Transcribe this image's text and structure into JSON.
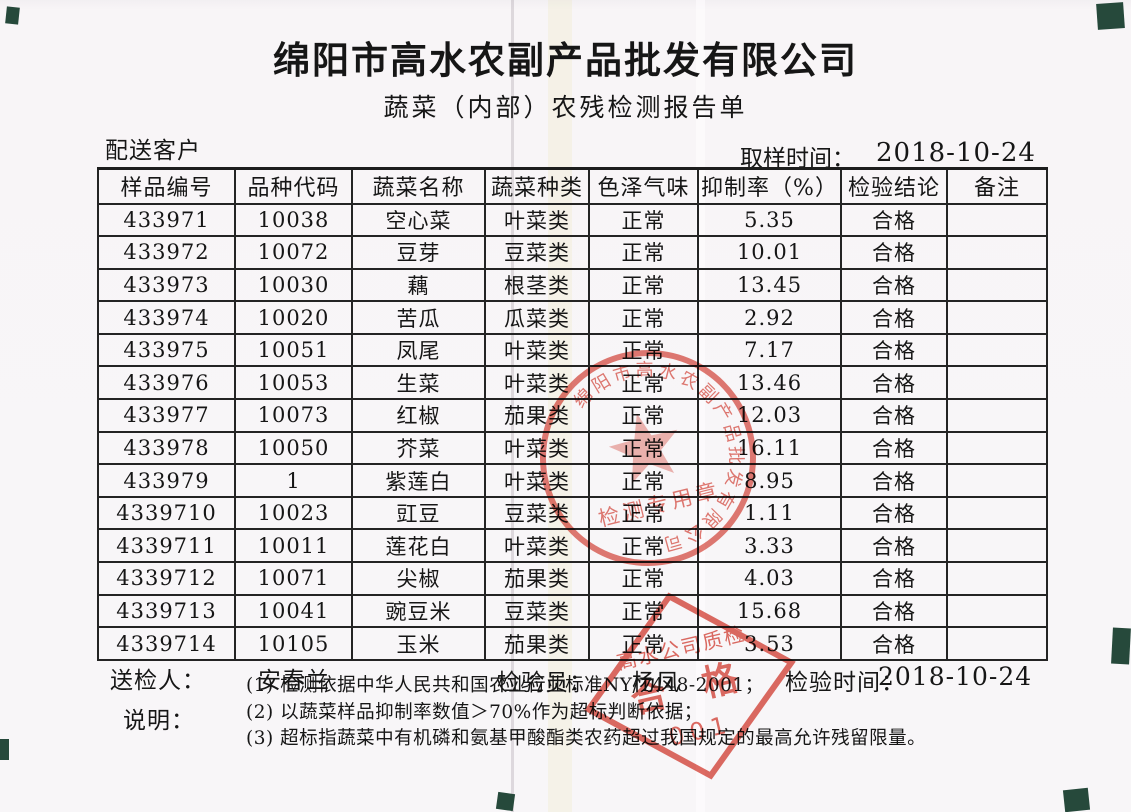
{
  "page": {
    "company_title": "绵阳市高水农副产品批发有限公司",
    "report_title": "蔬菜（内部）农残检测报告单",
    "delivery_customer_label": "配送客户",
    "sampling_time_label": "取样时间：",
    "sampling_time_value": "2018-10-24"
  },
  "table": {
    "headers": [
      "样品编号",
      "品种代码",
      "蔬菜名称",
      "蔬菜种类",
      "色泽气味",
      "抑制率（%）",
      "检验结论",
      "备注"
    ],
    "rows": [
      [
        "433971",
        "10038",
        "空心菜",
        "叶菜类",
        "正常",
        "5.35",
        "合格",
        ""
      ],
      [
        "433972",
        "10072",
        "豆芽",
        "豆菜类",
        "正常",
        "10.01",
        "合格",
        ""
      ],
      [
        "433973",
        "10030",
        "藕",
        "根茎类",
        "正常",
        "13.45",
        "合格",
        ""
      ],
      [
        "433974",
        "10020",
        "苦瓜",
        "瓜菜类",
        "正常",
        "2.92",
        "合格",
        ""
      ],
      [
        "433975",
        "10051",
        "凤尾",
        "叶菜类",
        "正常",
        "7.17",
        "合格",
        ""
      ],
      [
        "433976",
        "10053",
        "生菜",
        "叶菜类",
        "正常",
        "13.46",
        "合格",
        ""
      ],
      [
        "433977",
        "10073",
        "红椒",
        "茄果类",
        "正常",
        "12.03",
        "合格",
        ""
      ],
      [
        "433978",
        "10050",
        "芥菜",
        "叶菜类",
        "正常",
        "16.11",
        "合格",
        ""
      ],
      [
        "433979",
        "1",
        "紫莲白",
        "叶菜类",
        "正常",
        "8.95",
        "合格",
        ""
      ],
      [
        "4339710",
        "10023",
        "豇豆",
        "豆菜类",
        "正常",
        "1.11",
        "合格",
        ""
      ],
      [
        "4339711",
        "10011",
        "莲花白",
        "叶菜类",
        "正常",
        "3.33",
        "合格",
        ""
      ],
      [
        "4339712",
        "10071",
        "尖椒",
        "茄果类",
        "正常",
        "4.03",
        "合格",
        ""
      ],
      [
        "4339713",
        "10041",
        "豌豆米",
        "豆菜类",
        "正常",
        "15.68",
        "合格",
        ""
      ],
      [
        "4339714",
        "10105",
        "玉米",
        "茄果类",
        "正常",
        "3.53",
        "合格",
        ""
      ]
    ]
  },
  "footer": {
    "sender_label": "送检人：",
    "sender_value": "安春兰",
    "inspector_label": "检验员：",
    "inspector_value": "杨凤",
    "inspection_time_label": "检验时间：",
    "inspection_time_value": "2018-10-24",
    "notes_label": "说明：",
    "notes": [
      "(1) 检测依据中华人民共和国农业行业标准NY/T448-2001；",
      "(2) 以蔬菜样品抑制率数值＞70%作为超标判断依据；",
      "(3) 超标指蔬菜中有机磷和氨基甲酸酯类农药超过我国规定的最高允许残留限量。"
    ]
  },
  "stamps": {
    "seal_color": "#d9473c",
    "round_seal": {
      "ring_text": "绵阳市高水农副产品批发有限公司",
      "bottom_text": "检测专用章"
    },
    "diamond_stamp": {
      "line1": "高水公司质检",
      "line2": "合 格",
      "line3": "001"
    }
  }
}
